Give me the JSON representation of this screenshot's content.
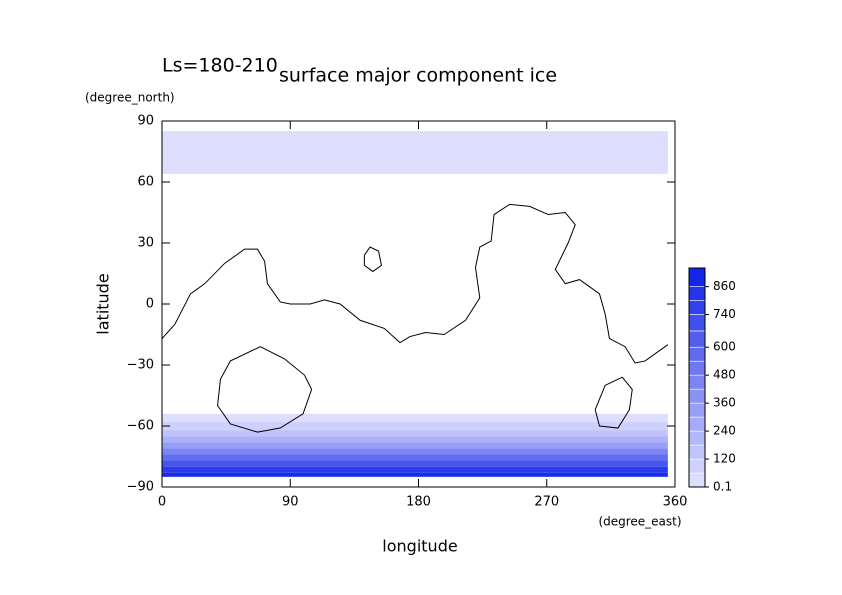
{
  "chart_data": {
    "type": "contour",
    "title": "surface major component ice",
    "subtitle": "Ls=180-210",
    "x_label": "longitude",
    "y_label": "latitude",
    "x_unit": "(degree_east)",
    "y_unit": "(degree_north)",
    "xlim": [
      0,
      360
    ],
    "ylim": [
      -90,
      90
    ],
    "xticks": [
      0,
      90,
      180,
      270,
      360
    ],
    "yticks": [
      {
        "value": -90,
        "label": "−90"
      },
      {
        "value": -60,
        "label": "−60"
      },
      {
        "value": -30,
        "label": "−30"
      },
      0,
      30,
      60,
      90
    ],
    "cmap": [
      "#e4e4ff",
      "#0a1ee6"
    ],
    "clim": [
      0,
      940
    ],
    "colorbar_ticks": [
      0.1,
      120,
      240,
      360,
      480,
      600,
      740,
      860
    ],
    "colorbar_levels": [
      0.1,
      60,
      120,
      180,
      240,
      300,
      360,
      420,
      480,
      540,
      600,
      670,
      740,
      800,
      860,
      940
    ],
    "fills": [
      {
        "level": 30,
        "lat": [
          64,
          85
        ],
        "lon": [
          0,
          355
        ]
      },
      {
        "level": 30,
        "lat": [
          -58,
          -54
        ],
        "lon": [
          0,
          355
        ]
      },
      {
        "level": 90,
        "lat": [
          -62,
          -58
        ],
        "lon": [
          0,
          355
        ]
      },
      {
        "level": 150,
        "lat": [
          -65,
          -62
        ],
        "lon": [
          0,
          355
        ]
      },
      {
        "level": 240,
        "lat": [
          -68,
          -65
        ],
        "lon": [
          0,
          355
        ]
      },
      {
        "level": 330,
        "lat": [
          -71,
          -68
        ],
        "lon": [
          0,
          355
        ]
      },
      {
        "level": 450,
        "lat": [
          -74,
          -71
        ],
        "lon": [
          0,
          355
        ]
      },
      {
        "level": 560,
        "lat": [
          -77,
          -74
        ],
        "lon": [
          0,
          355
        ]
      },
      {
        "level": 680,
        "lat": [
          -80,
          -77
        ],
        "lon": [
          0,
          355
        ]
      },
      {
        "level": 800,
        "lat": [
          -83,
          -80
        ],
        "lon": [
          0,
          355
        ]
      },
      {
        "level": 880,
        "lat": [
          -85,
          -83
        ],
        "lon": [
          0,
          355
        ]
      }
    ],
    "outlines": [
      {
        "x": [
          0,
          9,
          20,
          30,
          44,
          58,
          67,
          72,
          74,
          83,
          90,
          104,
          114,
          125,
          139,
          156,
          167,
          174,
          185,
          198,
          213,
          223,
          220,
          223,
          231,
          233,
          244,
          258,
          271,
          283,
          290,
          285,
          276,
          283,
          293,
          307,
          311,
          314,
          325,
          332,
          339,
          355
        ],
        "y": [
          -17,
          -10,
          5,
          10,
          20,
          27,
          27,
          21,
          10,
          1,
          0,
          0,
          2,
          0,
          -8,
          -12,
          -19,
          -16,
          -14,
          -15,
          -8,
          3,
          18,
          28,
          31,
          44,
          49,
          48,
          44,
          45,
          39,
          30,
          17,
          10,
          12,
          5,
          -5,
          -17,
          -21,
          -29,
          -28,
          -20
        ]
      },
      {
        "x": [
          142,
          146,
          152,
          154,
          148,
          142,
          142
        ],
        "y": [
          24,
          28,
          26,
          19,
          16,
          19,
          24
        ]
      },
      {
        "x": [
          41,
          48,
          69,
          86,
          100,
          105,
          99,
          83,
          67,
          48,
          39,
          41
        ],
        "y": [
          -37,
          -28,
          -21,
          -27,
          -35,
          -42,
          -54,
          -61,
          -63,
          -59,
          -50,
          -37
        ]
      },
      {
        "x": [
          304,
          311,
          323,
          330,
          328,
          320,
          307,
          304
        ],
        "y": [
          -52,
          -40,
          -36,
          -42,
          -52,
          -61,
          -60,
          -52
        ]
      }
    ]
  }
}
